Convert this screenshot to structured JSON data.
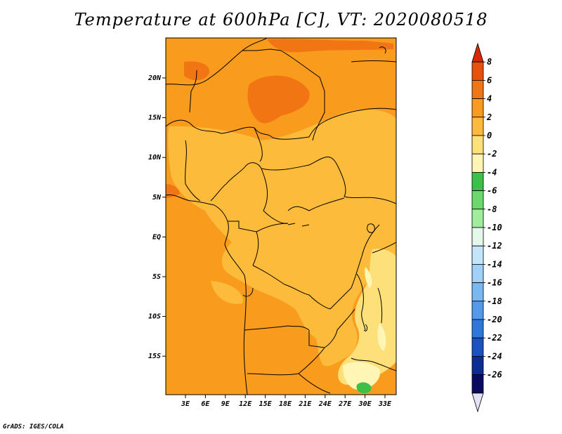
{
  "title": "Temperature at 600hPa [C], VT: 2020080518",
  "credit": "GrADS: IGES/COLA",
  "map": {
    "lat_labels": [
      "20N",
      "15N",
      "10N",
      "5N",
      "EQ",
      "5S",
      "10S",
      "15S"
    ],
    "lon_labels": [
      "3E",
      "6E",
      "9E",
      "12E",
      "15E",
      "18E",
      "21E",
      "24E",
      "27E",
      "30E",
      "33E"
    ]
  },
  "colorbar": {
    "labels": [
      "8",
      "6",
      "4",
      "2",
      "0",
      "-2",
      "-4",
      "-6",
      "-8",
      "-10",
      "-12",
      "-14",
      "-16",
      "-18",
      "-20",
      "-22",
      "-24",
      "-26"
    ],
    "colors": [
      "#d42a06",
      "#e8500c",
      "#f27514",
      "#f99b1c",
      "#fdbb3c",
      "#fde07a",
      "#fff6b5",
      "#3cc048",
      "#6cd86e",
      "#a2ec9e",
      "#e6f8ec",
      "#c4e4fa",
      "#a0d0f8",
      "#7ab8f2",
      "#5499ea",
      "#2e78dc",
      "#1a52c0",
      "#0c2c94",
      "#0a0a60",
      "#e2e2f4"
    ]
  }
}
